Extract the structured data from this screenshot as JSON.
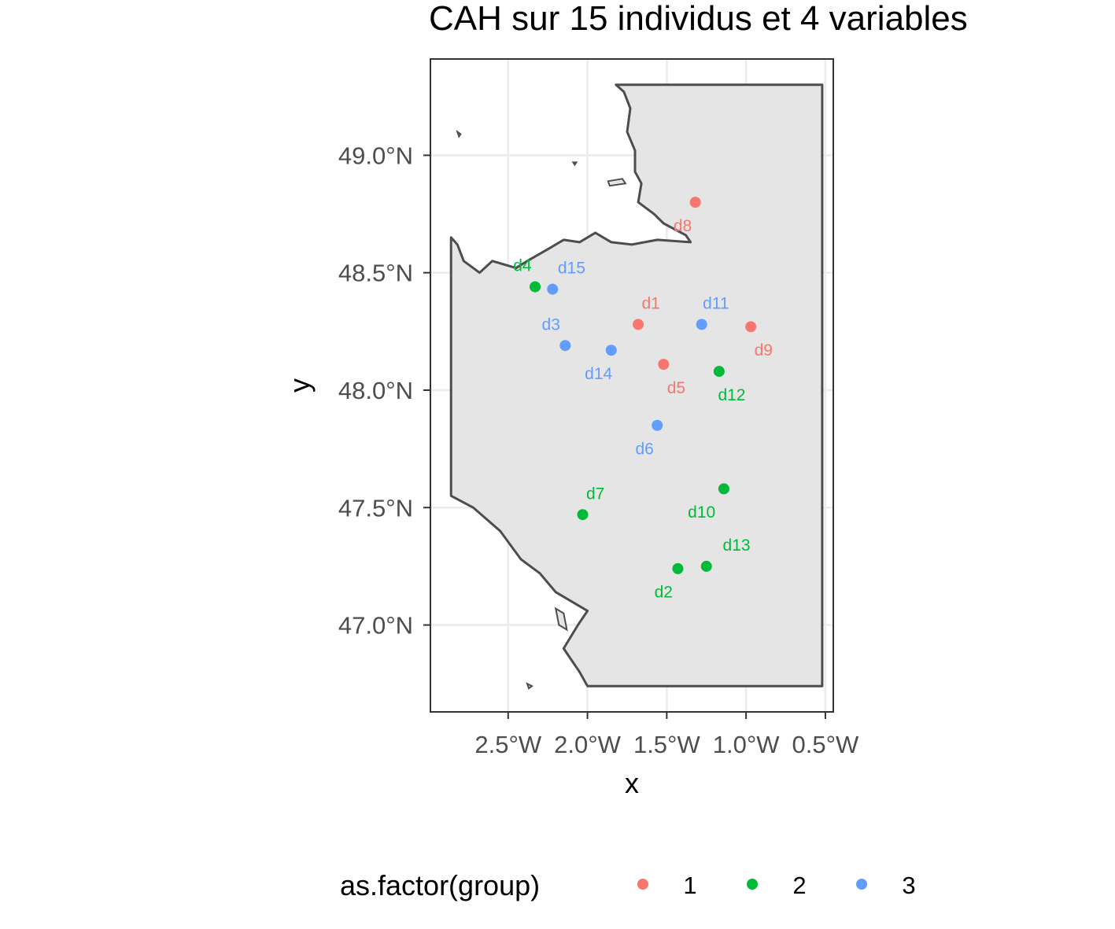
{
  "chart_data": {
    "type": "scatter",
    "title": "CAH sur 15 individus et 4 variables",
    "xlabel": "x",
    "ylabel": "y",
    "xlim": [
      -2.99,
      -0.45
    ],
    "ylim": [
      46.63,
      49.41
    ],
    "x_ticks": [
      {
        "value": -2.5,
        "label": "2.5°W"
      },
      {
        "value": -2.0,
        "label": "2.0°W"
      },
      {
        "value": -1.5,
        "label": "1.5°W"
      },
      {
        "value": -1.0,
        "label": "1.0°W"
      },
      {
        "value": -0.5,
        "label": "0.5°W"
      }
    ],
    "y_ticks": [
      {
        "value": 47.0,
        "label": "47.0°N"
      },
      {
        "value": 47.5,
        "label": "47.5°N"
      },
      {
        "value": 48.0,
        "label": "48.0°N"
      },
      {
        "value": 48.5,
        "label": "48.5°N"
      },
      {
        "value": 49.0,
        "label": "49.0°N"
      }
    ],
    "grid": true,
    "legend": {
      "title": "as.factor(group)",
      "position": "bottom",
      "entries": [
        {
          "label": "1",
          "color": "#F8766D"
        },
        {
          "label": "2",
          "color": "#00BA38"
        },
        {
          "label": "3",
          "color": "#619CFF"
        }
      ]
    },
    "points": [
      {
        "label": "d1",
        "x": -1.68,
        "y": 48.28,
        "group": "1",
        "label_dx": 0.08,
        "label_dy": 0.09
      },
      {
        "label": "d2",
        "x": -1.43,
        "y": 47.24,
        "group": "2",
        "label_dx": -0.09,
        "label_dy": -0.1
      },
      {
        "label": "d3",
        "x": -2.14,
        "y": 48.19,
        "group": "3",
        "label_dx": -0.09,
        "label_dy": 0.09
      },
      {
        "label": "d4",
        "x": -2.33,
        "y": 48.44,
        "group": "2",
        "label_dx": -0.08,
        "label_dy": 0.09
      },
      {
        "label": "d5",
        "x": -1.52,
        "y": 48.11,
        "group": "1",
        "label_dx": 0.08,
        "label_dy": -0.1
      },
      {
        "label": "d6",
        "x": -1.56,
        "y": 47.85,
        "group": "3",
        "label_dx": -0.08,
        "label_dy": -0.1
      },
      {
        "label": "d7",
        "x": -2.03,
        "y": 47.47,
        "group": "2",
        "label_dx": 0.08,
        "label_dy": 0.09
      },
      {
        "label": "d8",
        "x": -1.32,
        "y": 48.8,
        "group": "1",
        "label_dx": -0.08,
        "label_dy": -0.1
      },
      {
        "label": "d9",
        "x": -0.97,
        "y": 48.27,
        "group": "1",
        "label_dx": 0.08,
        "label_dy": -0.1
      },
      {
        "label": "d10",
        "x": -1.14,
        "y": 47.58,
        "group": "2",
        "label_dx": -0.14,
        "label_dy": -0.1
      },
      {
        "label": "d11",
        "x": -1.28,
        "y": 48.28,
        "group": "3",
        "label_dx": 0.09,
        "label_dy": 0.09
      },
      {
        "label": "d12",
        "x": -1.17,
        "y": 48.08,
        "group": "2",
        "label_dx": 0.08,
        "label_dy": -0.1
      },
      {
        "label": "d13",
        "x": -1.25,
        "y": 47.25,
        "group": "2",
        "label_dx": 0.19,
        "label_dy": 0.09
      },
      {
        "label": "d14",
        "x": -1.85,
        "y": 48.17,
        "group": "3",
        "label_dx": -0.08,
        "label_dy": -0.1
      },
      {
        "label": "d15",
        "x": -2.22,
        "y": 48.43,
        "group": "3",
        "label_dx": 0.12,
        "label_dy": 0.09
      }
    ],
    "region": {
      "fill": "#e5e5e5",
      "stroke": "#4d4d4d",
      "outline": [
        [
          -1.82,
          49.3
        ],
        [
          -1.77,
          49.27
        ],
        [
          -1.73,
          49.2
        ],
        [
          -1.75,
          49.1
        ],
        [
          -1.7,
          49.02
        ],
        [
          -1.7,
          48.93
        ],
        [
          -1.66,
          48.88
        ],
        [
          -1.68,
          48.8
        ],
        [
          -1.58,
          48.75
        ],
        [
          -1.52,
          48.71
        ],
        [
          -1.38,
          48.66
        ],
        [
          -1.35,
          48.63
        ],
        [
          -1.56,
          48.64
        ],
        [
          -1.72,
          48.62
        ],
        [
          -1.85,
          48.63
        ],
        [
          -1.95,
          48.67
        ],
        [
          -2.05,
          48.63
        ],
        [
          -2.15,
          48.64
        ],
        [
          -2.25,
          48.6
        ],
        [
          -2.38,
          48.55
        ],
        [
          -2.45,
          48.52
        ],
        [
          -2.6,
          48.55
        ],
        [
          -2.68,
          48.5
        ],
        [
          -2.78,
          48.55
        ],
        [
          -2.82,
          48.62
        ],
        [
          -2.86,
          48.65
        ],
        [
          -2.86,
          47.88
        ],
        [
          -2.86,
          47.55
        ],
        [
          -2.72,
          47.5
        ],
        [
          -2.55,
          47.4
        ],
        [
          -2.42,
          47.28
        ],
        [
          -2.3,
          47.22
        ],
        [
          -2.2,
          47.14
        ],
        [
          -2.0,
          47.06
        ],
        [
          -2.06,
          47.0
        ],
        [
          -2.15,
          46.9
        ],
        [
          -2.05,
          46.8
        ],
        [
          -2.0,
          46.74
        ],
        [
          -0.52,
          46.74
        ],
        [
          -0.52,
          49.3
        ]
      ],
      "islands": [
        [
          [
            -2.82,
            49.1
          ],
          [
            -2.8,
            49.09
          ],
          [
            -2.81,
            49.08
          ]
        ],
        [
          [
            -2.09,
            48.97
          ],
          [
            -2.07,
            48.97
          ],
          [
            -2.08,
            48.96
          ]
        ],
        [
          [
            -1.87,
            48.89
          ],
          [
            -1.78,
            48.9
          ],
          [
            -1.76,
            48.88
          ],
          [
            -1.86,
            48.87
          ]
        ],
        [
          [
            -2.2,
            47.07
          ],
          [
            -2.15,
            47.05
          ],
          [
            -2.13,
            46.98
          ],
          [
            -2.18,
            47.0
          ]
        ],
        [
          [
            -2.38,
            46.75
          ],
          [
            -2.35,
            46.74
          ],
          [
            -2.37,
            46.73
          ]
        ]
      ]
    }
  }
}
